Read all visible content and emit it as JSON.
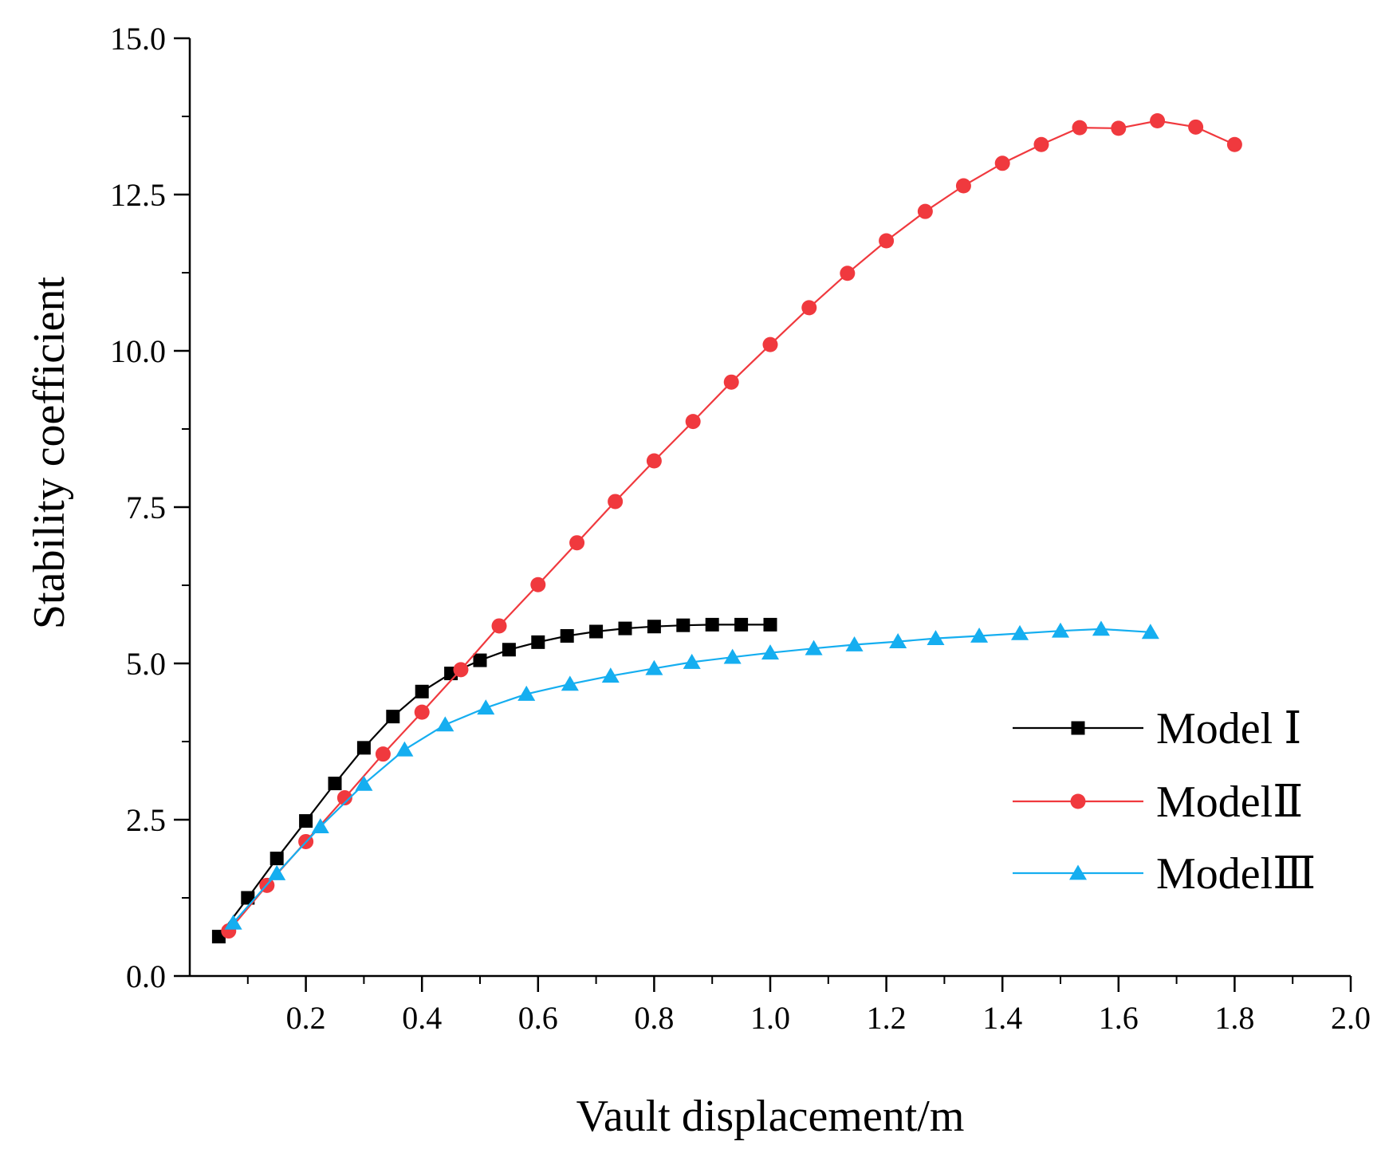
{
  "chart_data": {
    "type": "line",
    "title": "",
    "xlabel": "Vault displacement/m",
    "ylabel": "Stability coefficient",
    "xlim": [
      0.0,
      2.0
    ],
    "ylim": [
      0.0,
      15.0
    ],
    "xticks": [
      0.2,
      0.4,
      0.6,
      0.8,
      1.0,
      1.2,
      1.4,
      1.6,
      1.8,
      2.0
    ],
    "xtick_labels": [
      "0.2",
      "0.4",
      "0.6",
      "0.8",
      "1.0",
      "1.2",
      "1.4",
      "1.6",
      "1.8",
      "2.0"
    ],
    "yticks": [
      0.0,
      2.5,
      5.0,
      7.5,
      10.0,
      12.5,
      15.0
    ],
    "ytick_labels": [
      "0.0",
      "2.5",
      "5.0",
      "7.5",
      "10.0",
      "12.5",
      "15.0"
    ],
    "grid": false,
    "legend_position": "bottom-right",
    "series": [
      {
        "name": "Model Ⅰ",
        "color": "#000000",
        "marker": "square",
        "x": [
          0.05,
          0.1,
          0.15,
          0.2,
          0.25,
          0.3,
          0.35,
          0.4,
          0.45,
          0.5,
          0.55,
          0.6,
          0.65,
          0.7,
          0.75,
          0.8,
          0.85,
          0.9,
          0.95,
          1.0
        ],
        "y": [
          0.63,
          1.25,
          1.88,
          2.48,
          3.08,
          3.65,
          4.15,
          4.55,
          4.84,
          5.05,
          5.22,
          5.34,
          5.44,
          5.51,
          5.56,
          5.59,
          5.61,
          5.62,
          5.62,
          5.62
        ]
      },
      {
        "name": "ModelⅡ",
        "color": "#f0393e",
        "marker": "circle",
        "x": [
          0.067,
          0.133,
          0.2,
          0.267,
          0.333,
          0.4,
          0.467,
          0.533,
          0.6,
          0.667,
          0.733,
          0.8,
          0.867,
          0.933,
          1.0,
          1.067,
          1.133,
          1.2,
          1.267,
          1.333,
          1.4,
          1.467,
          1.533,
          1.6,
          1.667,
          1.733,
          1.8
        ],
        "y": [
          0.72,
          1.45,
          2.15,
          2.85,
          3.55,
          4.22,
          4.9,
          5.6,
          6.26,
          6.93,
          7.59,
          8.24,
          8.87,
          9.5,
          10.1,
          10.69,
          11.24,
          11.76,
          12.23,
          12.64,
          13.0,
          13.3,
          13.57,
          13.56,
          13.68,
          13.58,
          13.3
        ]
      },
      {
        "name": "ModelⅢ",
        "color": "#15aef0",
        "marker": "triangle",
        "x": [
          0.075,
          0.15,
          0.225,
          0.3,
          0.37,
          0.44,
          0.51,
          0.58,
          0.655,
          0.725,
          0.8,
          0.865,
          0.935,
          1.0,
          1.075,
          1.145,
          1.22,
          1.285,
          1.36,
          1.43,
          1.5,
          1.57,
          1.655
        ],
        "y": [
          0.85,
          1.64,
          2.39,
          3.07,
          3.62,
          4.02,
          4.29,
          4.51,
          4.67,
          4.8,
          4.92,
          5.02,
          5.1,
          5.17,
          5.24,
          5.3,
          5.35,
          5.4,
          5.44,
          5.48,
          5.52,
          5.55,
          5.5
        ]
      }
    ]
  }
}
